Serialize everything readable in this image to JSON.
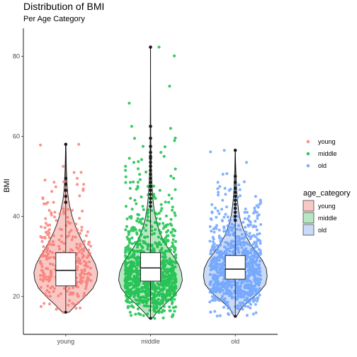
{
  "chart_data": {
    "type": "violin",
    "title": "Distribution of BMI",
    "subtitle": "Per Age Category",
    "xlabel": "",
    "ylabel": "BMI",
    "categories": [
      "young",
      "middle",
      "old"
    ],
    "ylim": [
      10.5,
      87
    ],
    "yticks": [
      20,
      40,
      60,
      80
    ],
    "colors": {
      "young": {
        "point": "#F8766D",
        "fill": "#F8C8C5"
      },
      "middle": {
        "point": "#00BA38",
        "fill": "#B8E6C3"
      },
      "old": {
        "point": "#619CFF",
        "fill": "#CADAF7"
      }
    },
    "series": [
      {
        "name": "young",
        "n_points_shown": 340,
        "box": {
          "min": 16.0,
          "q1": 22.6,
          "median": 26.5,
          "q3": 30.9,
          "max": 43.0
        },
        "outliers": [
          43.5,
          45.0,
          46.5,
          48.0,
          49.5,
          58.0
        ],
        "violin": {
          "y": [
            16.0,
            18,
            20,
            22,
            24,
            26,
            28,
            30,
            32,
            34,
            36,
            38,
            40,
            42,
            44,
            46,
            48,
            50,
            52,
            54,
            56,
            58.0
          ],
          "w": [
            0.1,
            0.35,
            0.62,
            0.85,
            0.97,
            1.0,
            0.93,
            0.8,
            0.64,
            0.5,
            0.38,
            0.28,
            0.2,
            0.14,
            0.09,
            0.06,
            0.04,
            0.03,
            0.02,
            0.015,
            0.01,
            0.005
          ]
        }
      },
      {
        "name": "middle",
        "n_points_shown": 1000,
        "box": {
          "min": 14.5,
          "q1": 23.8,
          "median": 27.1,
          "q3": 30.9,
          "max": 42.0
        },
        "outliers": [
          42.5,
          43.5,
          44.5,
          45.5,
          46.5,
          47.5,
          48.5,
          49.5,
          50.5,
          51.5,
          52.5,
          53.5,
          54.5,
          55.0,
          56.0,
          57.5,
          59.5,
          62.5,
          82.3
        ],
        "violin": {
          "y": [
            14.5,
            16,
            18,
            20,
            22,
            24,
            26,
            28,
            30,
            32,
            34,
            36,
            38,
            40,
            42,
            44,
            46,
            48,
            50,
            52,
            55,
            60,
            65,
            70,
            75,
            82.3
          ],
          "w": [
            0.05,
            0.2,
            0.45,
            0.72,
            0.92,
            1.0,
            0.97,
            0.88,
            0.72,
            0.55,
            0.4,
            0.29,
            0.21,
            0.15,
            0.11,
            0.08,
            0.06,
            0.045,
            0.035,
            0.025,
            0.018,
            0.01,
            0.006,
            0.004,
            0.003,
            0.002
          ]
        }
      },
      {
        "name": "old",
        "n_points_shown": 900,
        "box": {
          "min": 15.0,
          "q1": 24.3,
          "median": 26.8,
          "q3": 30.2,
          "max": 38.5
        },
        "outliers": [
          39.0,
          40.0,
          41.0,
          42.0,
          43.0,
          44.0,
          45.0,
          46.0,
          47.0,
          48.5,
          50.0,
          56.5
        ],
        "violin": {
          "y": [
            15.0,
            17,
            19,
            21,
            23,
            25,
            27,
            29,
            31,
            33,
            35,
            37,
            39,
            41,
            43,
            45,
            47,
            49,
            51,
            53,
            56.5
          ],
          "w": [
            0.04,
            0.18,
            0.45,
            0.75,
            0.95,
            1.0,
            0.97,
            0.85,
            0.66,
            0.48,
            0.34,
            0.24,
            0.16,
            0.11,
            0.08,
            0.055,
            0.04,
            0.03,
            0.02,
            0.012,
            0.004
          ]
        }
      }
    ],
    "legends": [
      {
        "title": "",
        "kind": "points",
        "items": [
          "young",
          "middle",
          "old"
        ]
      },
      {
        "title": "age_category",
        "kind": "fill",
        "items": [
          "young",
          "middle",
          "old"
        ]
      }
    ]
  }
}
